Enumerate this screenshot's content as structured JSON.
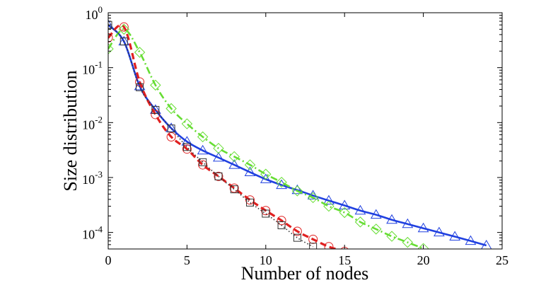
{
  "chart_data": {
    "type": "line",
    "title": "",
    "xlabel": "Number of nodes",
    "ylabel": "Size distribution",
    "xlim": [
      0,
      25
    ],
    "ylim": [
      5e-05,
      1
    ],
    "yscale": "log",
    "grid": false,
    "x_ticks": [
      0,
      5,
      10,
      15,
      20,
      25
    ],
    "x_tick_labels": [
      "0",
      "5",
      "10",
      "15",
      "20",
      "25"
    ],
    "y_ticks": [
      0.0001,
      0.001,
      0.01,
      0.1,
      1
    ],
    "y_tick_labels": [
      {
        "base": "10",
        "exp": "-4"
      },
      {
        "base": "10",
        "exp": "-3"
      },
      {
        "base": "10",
        "exp": "-2"
      },
      {
        "base": "10",
        "exp": "-1"
      },
      {
        "base": "10",
        "exp": "0"
      }
    ],
    "series": [
      {
        "color": "#2040e0",
        "line_style": "solid",
        "marker": "triangle",
        "x": [
          0,
          1,
          2,
          3,
          4,
          5,
          6,
          7,
          8,
          9,
          10,
          11,
          12,
          13,
          14,
          15,
          16,
          17,
          18,
          19,
          20,
          21,
          22,
          23,
          24
        ],
        "y": [
          0.6,
          0.3,
          0.046,
          0.017,
          0.0079,
          0.0045,
          0.0031,
          0.0023,
          0.0017,
          0.00125,
          0.00093,
          0.00073,
          0.00059,
          0.00047,
          0.00038,
          0.00031,
          0.00025,
          0.00021,
          0.00017,
          0.000142,
          0.000119,
          0.0001,
          8.4e-05,
          7e-05,
          5.8e-05
        ]
      },
      {
        "color": "#e02020",
        "line_style": "dashed",
        "marker": "circle",
        "x": [
          0,
          1,
          2,
          3,
          4,
          5,
          6,
          7,
          8,
          9,
          10,
          11,
          12,
          13,
          14,
          15
        ],
        "y": [
          0.35,
          0.55,
          0.055,
          0.014,
          0.0055,
          0.0033,
          0.0017,
          0.00105,
          0.00064,
          0.00039,
          0.00025,
          0.000165,
          0.000105,
          7.5e-05,
          5.5e-05,
          4.5e-05
        ]
      },
      {
        "color": "#66dd33",
        "line_style": "dashdot",
        "marker": "diamond",
        "x": [
          0,
          1,
          2,
          3,
          4,
          5,
          6,
          7,
          8,
          9,
          10,
          11,
          12,
          13,
          14,
          15,
          16,
          17,
          18,
          19,
          20
        ],
        "y": [
          0.22,
          0.5,
          0.19,
          0.048,
          0.018,
          0.0095,
          0.0055,
          0.0034,
          0.0024,
          0.0017,
          0.00115,
          0.00082,
          0.00057,
          0.00043,
          0.0003,
          0.00023,
          0.000155,
          0.000115,
          8.5e-05,
          6.6e-05,
          5.1e-05
        ]
      },
      {
        "color": "#333333",
        "line_style": "dotted",
        "marker": "square",
        "x": [
          0,
          1,
          2,
          3,
          4,
          5,
          6,
          7,
          8,
          9,
          10,
          11,
          12,
          13
        ],
        "y": [
          0.6,
          0.3,
          0.044,
          0.017,
          0.0078,
          0.0036,
          0.0019,
          0.00105,
          0.00061,
          0.00035,
          0.00022,
          0.000135,
          8e-05,
          5.5e-05
        ]
      }
    ]
  }
}
